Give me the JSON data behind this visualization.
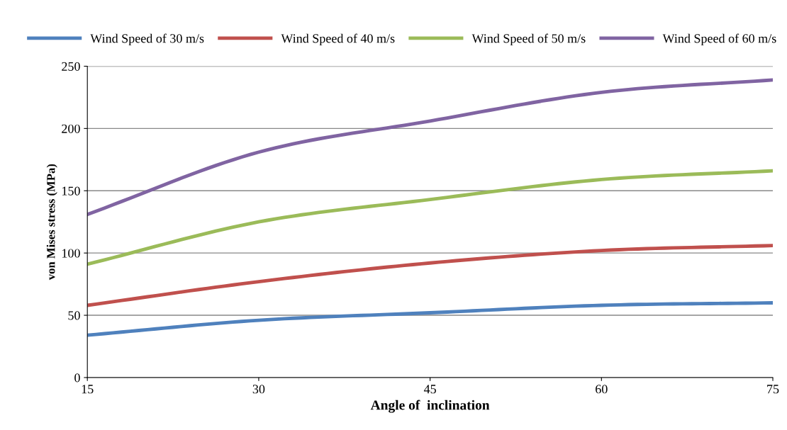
{
  "chart_data": {
    "type": "line",
    "xlabel": "Angle of  inclination",
    "ylabel": "von Mises stress (MPa)",
    "x": [
      15,
      30,
      45,
      60,
      75
    ],
    "series": [
      {
        "name": "Wind Speed of 30 m/s",
        "color": "#4f81bd",
        "values": [
          34,
          46,
          52,
          58,
          60
        ]
      },
      {
        "name": "Wind Speed of 40 m/s",
        "color": "#c0504d",
        "values": [
          58,
          77,
          92,
          102,
          106
        ]
      },
      {
        "name": "Wind Speed of 50 m/s",
        "color": "#9bbb59",
        "values": [
          91,
          125,
          143,
          159,
          166
        ]
      },
      {
        "name": "Wind Speed of 60 m/s",
        "color": "#8064a2",
        "values": [
          131,
          181,
          206,
          229,
          239
        ]
      }
    ],
    "xlim": [
      15,
      75
    ],
    "xticks": [
      15,
      30,
      45,
      60,
      75
    ],
    "ylim": [
      0,
      250
    ],
    "yticks": [
      0,
      50,
      100,
      150,
      200,
      250
    ],
    "grid": "y",
    "legend": "top",
    "marker": "none",
    "line_style": "solid"
  }
}
